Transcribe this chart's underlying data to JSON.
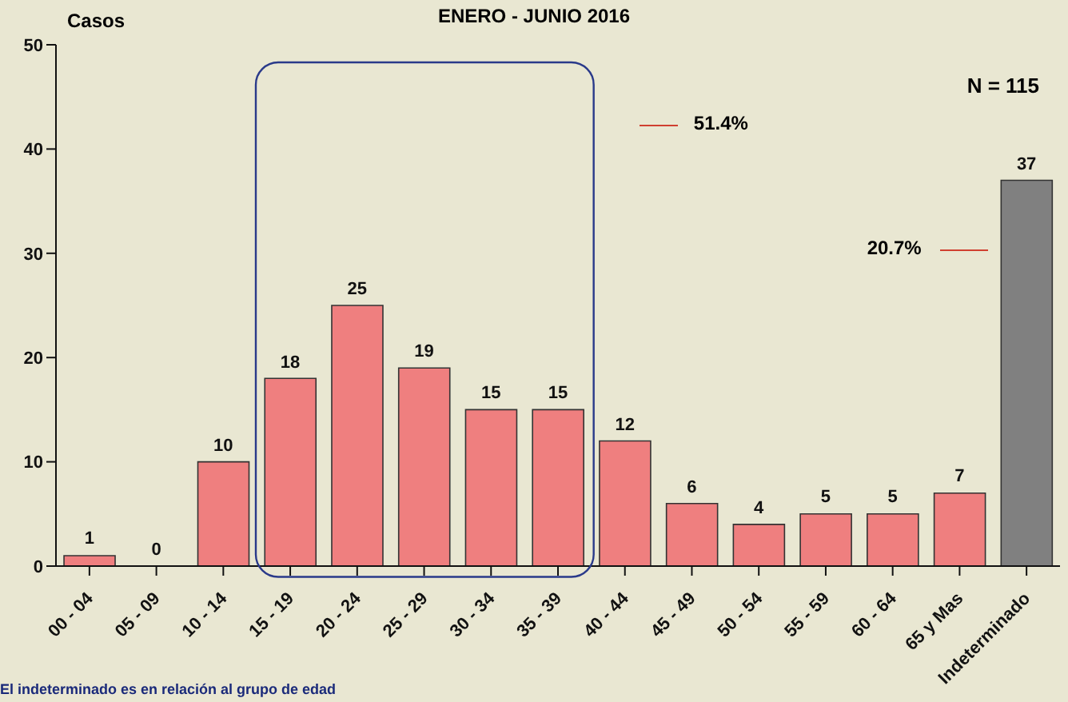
{
  "chart_data": {
    "type": "bar",
    "title": "ENERO - JUNIO 2016",
    "ylabel": "Casos",
    "categories": [
      "00 - 04",
      "05 - 09",
      "10 - 14",
      "15 - 19",
      "20 - 24",
      "25 - 29",
      "30 - 34",
      "35 - 39",
      "40 - 44",
      "45 - 49",
      "50 - 54",
      "55 - 59",
      "60 - 64",
      "65 y Mas",
      "Indeterminado"
    ],
    "values": [
      1,
      0,
      10,
      18,
      25,
      19,
      15,
      15,
      12,
      6,
      4,
      5,
      5,
      7,
      37
    ],
    "colors": [
      "#ef7f7f",
      "#ef7f7f",
      "#ef7f7f",
      "#ef7f7f",
      "#ef7f7f",
      "#ef7f7f",
      "#ef7f7f",
      "#ef7f7f",
      "#ef7f7f",
      "#ef7f7f",
      "#ef7f7f",
      "#ef7f7f",
      "#ef7f7f",
      "#ef7f7f",
      "#808080"
    ],
    "ylim": [
      0,
      50
    ],
    "yticks": [
      0,
      10,
      20,
      30,
      40,
      50
    ],
    "data_labels": true,
    "annotations": [
      "N = 115",
      "51.4%",
      "20.7%",
      "El indeterminado es en relación al grupo de edad"
    ]
  }
}
